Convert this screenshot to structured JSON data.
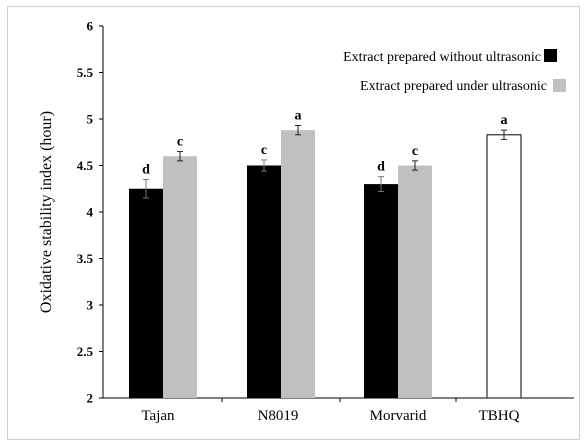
{
  "chart_data": {
    "type": "bar",
    "categories": [
      "Tajan",
      "N8019",
      "Morvarid",
      "TBHQ"
    ],
    "ylabel": "Oxidative stability index (hour)",
    "xlabel": "",
    "ylim": [
      2,
      6
    ],
    "yticks": [
      "2",
      "2.5",
      "3",
      "3.5",
      "4",
      "4.5",
      "5",
      "5.5",
      "6"
    ],
    "grid": false,
    "legend_position": "top-right",
    "series": [
      {
        "name": "Extract prepared without ultrasonic",
        "color": "#000000",
        "values": [
          4.25,
          4.5,
          4.3,
          null
        ],
        "errors": [
          0.1,
          0.06,
          0.08,
          null
        ],
        "labels": [
          "d",
          "c",
          "d",
          null
        ]
      },
      {
        "name": "Extract prepared under ultrasonic",
        "color": "#c0c0c0",
        "values": [
          4.6,
          4.88,
          4.5,
          null
        ],
        "errors": [
          0.05,
          0.05,
          0.05,
          null
        ],
        "labels": [
          "c",
          "a",
          "c",
          null
        ]
      },
      {
        "name": "",
        "color": "#ffffff",
        "values": [
          null,
          null,
          null,
          4.83
        ],
        "errors": [
          null,
          null,
          null,
          0.05
        ],
        "labels": [
          null,
          null,
          null,
          "a"
        ]
      }
    ]
  }
}
